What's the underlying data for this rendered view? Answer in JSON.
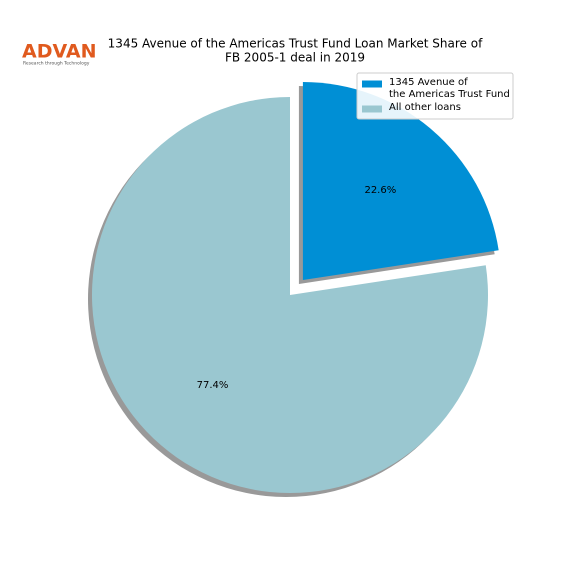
{
  "logo": {
    "name": "ADVAN",
    "tagline": "Research through Technology"
  },
  "chart_data": {
    "type": "pie",
    "title": [
      "1345 Avenue of the Americas Trust Fund Loan Market Share of",
      "FB 2005-1 deal in 2019"
    ],
    "categories": [
      [
        "1345 Avenue of",
        "the Americas Trust Fund"
      ],
      [
        "All other loans"
      ]
    ],
    "values": [
      22.6,
      77.4
    ],
    "value_labels": [
      "22.6%",
      "77.4%"
    ],
    "colors": [
      "#008fd5",
      "#9ac7d0"
    ],
    "explode": [
      0.1,
      0
    ],
    "shadow": true,
    "legend": "upper right"
  }
}
